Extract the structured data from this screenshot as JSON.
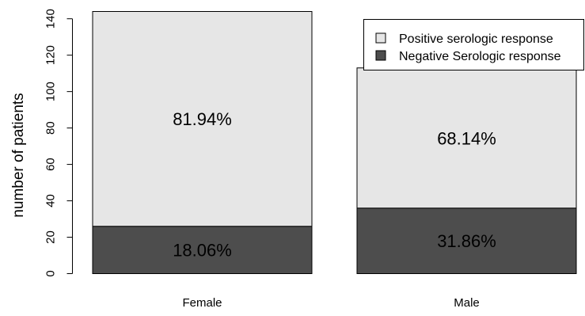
{
  "chart_data": {
    "type": "bar",
    "stacked": true,
    "categories": [
      "Female",
      "Male"
    ],
    "series": [
      {
        "name": "Negative Serologic response",
        "values": [
          26,
          36
        ],
        "labels": [
          "18.06%",
          "31.86%"
        ],
        "color": "#4d4d4d"
      },
      {
        "name": "Positive serologic response",
        "values": [
          118,
          77
        ],
        "labels": [
          "81.94%",
          "68.14%"
        ],
        "color": "#e6e6e6"
      }
    ],
    "legend_order": [
      1,
      0
    ],
    "ylabel": "number of patients",
    "xlabel": "",
    "yticks": [
      0,
      20,
      40,
      60,
      80,
      100,
      120,
      140
    ],
    "ylim": [
      0,
      144
    ],
    "legend_position": "top-right",
    "grid": false
  }
}
